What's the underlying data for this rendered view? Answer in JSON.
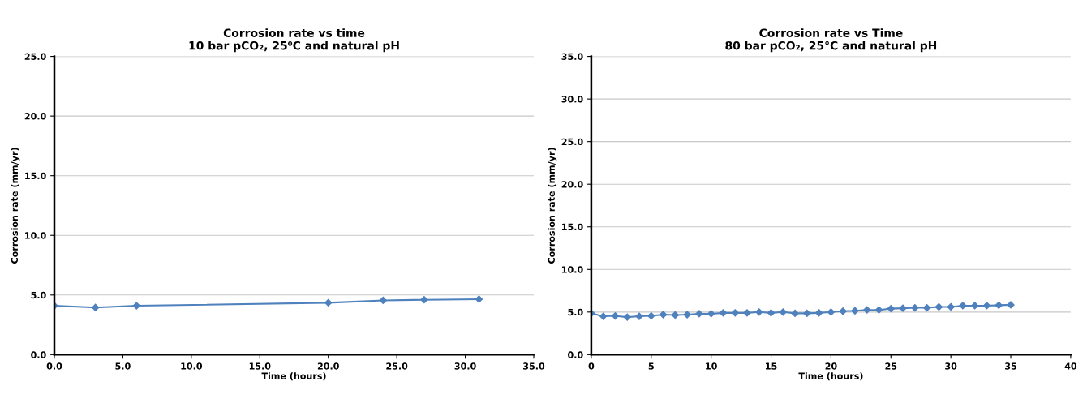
{
  "chart_data": [
    {
      "type": "line",
      "title": "Corrosion rate vs time\n10 bar pCO₂, 25⁰C and natural pH",
      "xlabel": "Time (hours)",
      "ylabel": "Corrosion rate (mm/yr)",
      "x": [
        0,
        3,
        6,
        20,
        24,
        27,
        31
      ],
      "series": [
        {
          "color": "#4f81bd",
          "values": [
            4.1,
            3.95,
            4.1,
            4.35,
            4.55,
            4.6,
            4.65
          ]
        }
      ],
      "xlim": [
        0,
        35
      ],
      "xticks": [
        {
          "value": 0,
          "label": "0.0"
        },
        {
          "value": 5,
          "label": "5.0"
        },
        {
          "value": 10,
          "label": "10.0"
        },
        {
          "value": 15,
          "label": "15.0"
        },
        {
          "value": 20,
          "label": "20.0"
        },
        {
          "value": 25,
          "label": "25.0"
        },
        {
          "value": 30,
          "label": "30.0"
        },
        {
          "value": 35,
          "label": "35.0"
        }
      ],
      "ylim": [
        0,
        25
      ],
      "yticks": [
        {
          "value": 0,
          "label": "0.0"
        },
        {
          "value": 5,
          "label": "5.0"
        },
        {
          "value": 10,
          "label": "10.0"
        },
        {
          "value": 15,
          "label": "15.0"
        },
        {
          "value": 20,
          "label": "20.0"
        },
        {
          "value": 25,
          "label": "25.0"
        }
      ],
      "grid": "y",
      "marker": "diamond",
      "line_style": "solid",
      "legend": false
    },
    {
      "type": "line",
      "title": "Corrosion rate vs Time\n80 bar pCO₂, 25°C and natural pH",
      "xlabel": "Time (hours)",
      "ylabel": "Corrosion rate (mm/yr)",
      "x": [
        0,
        1,
        2,
        3,
        4,
        5,
        6,
        7,
        8,
        9,
        10,
        11,
        12,
        13,
        14,
        15,
        16,
        17,
        18,
        19,
        20,
        21,
        22,
        23,
        24,
        25,
        26,
        27,
        28,
        29,
        30,
        31,
        32,
        33,
        34,
        35
      ],
      "series": [
        {
          "color": "#4f81bd",
          "values": [
            4.85,
            4.5,
            4.55,
            4.4,
            4.5,
            4.55,
            4.7,
            4.65,
            4.7,
            4.8,
            4.8,
            4.9,
            4.9,
            4.9,
            5.0,
            4.9,
            5.0,
            4.85,
            4.85,
            4.9,
            5.0,
            5.1,
            5.15,
            5.25,
            5.25,
            5.4,
            5.45,
            5.5,
            5.5,
            5.6,
            5.6,
            5.75,
            5.75,
            5.75,
            5.8,
            5.85
          ]
        }
      ],
      "xlim": [
        0,
        40
      ],
      "xticks": [
        0,
        5,
        10,
        15,
        20,
        25,
        30,
        35,
        40
      ],
      "ylim": [
        0,
        35
      ],
      "yticks": [
        {
          "value": 0,
          "label": "0.0"
        },
        {
          "value": 5,
          "label": "5.0"
        },
        {
          "value": 10,
          "label": "10.0"
        },
        {
          "value": 15,
          "label": "15.0"
        },
        {
          "value": 20,
          "label": "20.0"
        },
        {
          "value": 25,
          "label": "25.0"
        },
        {
          "value": 30,
          "label": "30.0"
        },
        {
          "value": 35,
          "label": "35.0"
        }
      ],
      "grid": "y",
      "marker": "diamond",
      "line_style": "solid",
      "legend": false
    }
  ]
}
